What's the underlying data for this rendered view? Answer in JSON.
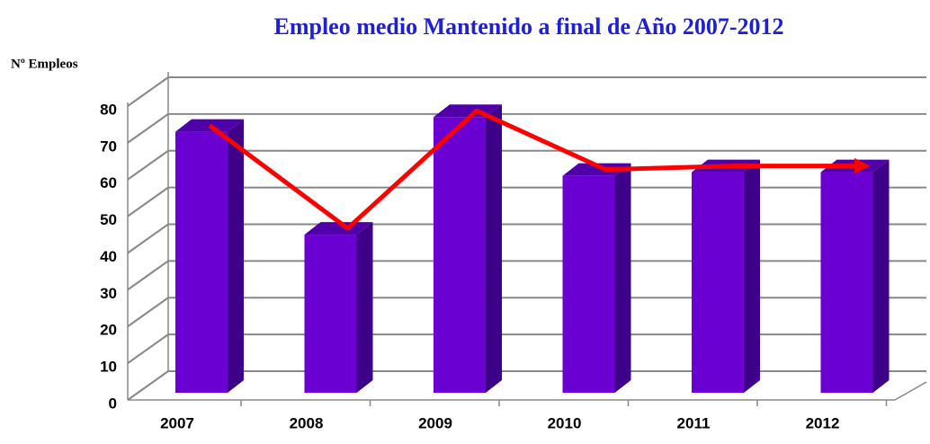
{
  "chart_data": {
    "type": "bar",
    "title": "Empleo medio Mantenido a final  de Año 2007-2012",
    "y_label": "Nº Empleos",
    "categories": [
      "2007",
      "2008",
      "2009",
      "2010",
      "2011",
      "2012"
    ],
    "values": [
      73,
      45,
      77,
      61,
      62,
      62
    ],
    "color": "#6a00d2",
    "line_color": "#ff0000",
    "ylim": [
      0,
      80
    ],
    "yticks": [
      0,
      10,
      20,
      30,
      40,
      50,
      60,
      70,
      80
    ],
    "grid": true
  }
}
